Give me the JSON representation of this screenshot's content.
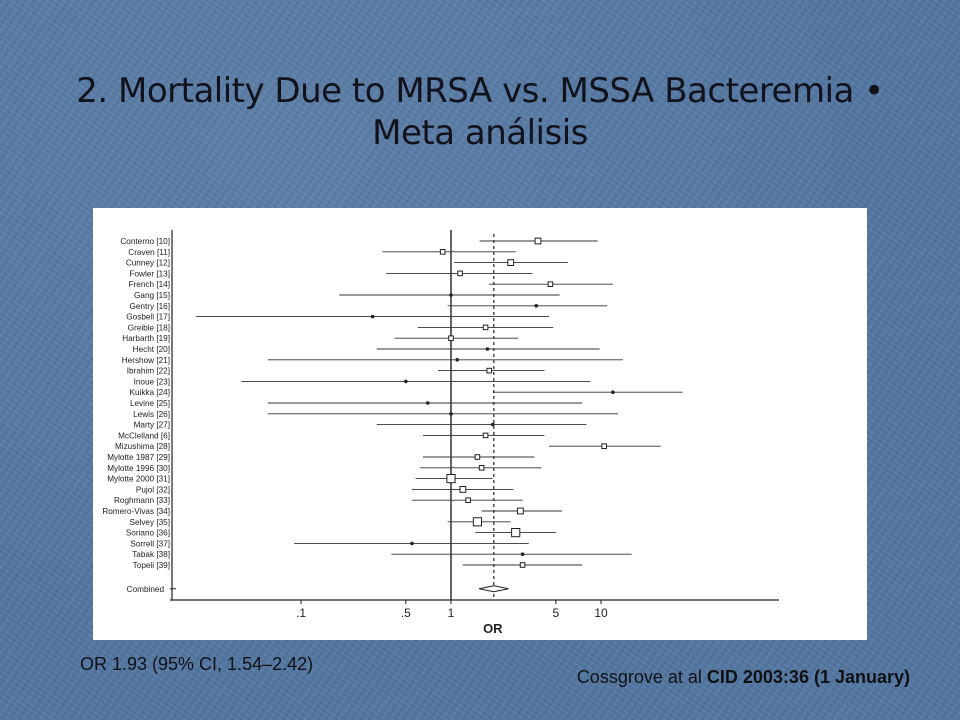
{
  "slide": {
    "title_line1": "2. Mortality Due to MRSA vs. MSSA Bacteremia •",
    "title_line2": "Meta análisis",
    "summary": "OR 1.93 (95% CI, 1.54–2.42)",
    "citation_prefix": "Cossgrove at al",
    "citation_bold": "CID 2003:36 (1 January)"
  },
  "chart_data": {
    "type": "forest",
    "title": "",
    "xlabel": "OR",
    "ylabel": "",
    "x_scale": "log",
    "xlim": [
      0.03,
      40
    ],
    "x_ticks": [
      0.1,
      0.5,
      1,
      5,
      10
    ],
    "x_tick_labels": [
      ".1",
      ".5",
      "1",
      "5",
      "10"
    ],
    "reference_line": 1,
    "pooled_line": 1.93,
    "studies": [
      {
        "name": "Conterno [10]",
        "or": 3.8,
        "lo": 1.55,
        "hi": 9.5,
        "box": "medium"
      },
      {
        "name": "Craven [11]",
        "or": 0.88,
        "lo": 0.35,
        "hi": 2.7,
        "box": "small"
      },
      {
        "name": "Cunney [12]",
        "or": 2.5,
        "lo": 1.05,
        "hi": 6.0,
        "box": "medium"
      },
      {
        "name": "Fowler [13]",
        "or": 1.15,
        "lo": 0.37,
        "hi": 3.5,
        "box": "small"
      },
      {
        "name": "French [14]",
        "or": 4.6,
        "lo": 1.8,
        "hi": 12,
        "box": "small"
      },
      {
        "name": "Gang [15]",
        "or": 1.0,
        "lo": 0.18,
        "hi": 5.3,
        "box": "dot"
      },
      {
        "name": "Gentry [16]",
        "or": 3.7,
        "lo": 0.95,
        "hi": 11,
        "box": "dot"
      },
      {
        "name": "Gosbell [17]",
        "or": 0.3,
        "lo": 0.02,
        "hi": 4.5,
        "box": "dot"
      },
      {
        "name": "Greible [18]",
        "or": 1.7,
        "lo": 0.6,
        "hi": 4.8,
        "box": "small"
      },
      {
        "name": "Harbarth [19]",
        "or": 1.0,
        "lo": 0.42,
        "hi": 2.8,
        "box": "small"
      },
      {
        "name": "Hecht [20]",
        "or": 1.75,
        "lo": 0.32,
        "hi": 9.8,
        "box": "dot"
      },
      {
        "name": "Hershow [21]",
        "or": 1.1,
        "lo": 0.06,
        "hi": 14,
        "box": "dot"
      },
      {
        "name": "Ibrahim [22]",
        "or": 1.8,
        "lo": 0.82,
        "hi": 4.2,
        "box": "small"
      },
      {
        "name": "Inoue [23]",
        "or": 0.5,
        "lo": 0.04,
        "hi": 8.5,
        "box": "dot"
      },
      {
        "name": "Kuikka [24]",
        "or": 12,
        "lo": 1.9,
        "hi": 35,
        "box": "dot"
      },
      {
        "name": "Levine [25]",
        "or": 0.7,
        "lo": 0.06,
        "hi": 7.5,
        "box": "dot"
      },
      {
        "name": "Lewis [26]",
        "or": 1.0,
        "lo": 0.06,
        "hi": 13,
        "box": "dot"
      },
      {
        "name": "Marty [27]",
        "or": 1.9,
        "lo": 0.32,
        "hi": 8.0,
        "box": "dot"
      },
      {
        "name": "McClelland [6]",
        "or": 1.7,
        "lo": 0.65,
        "hi": 4.2,
        "box": "small"
      },
      {
        "name": "Mizushima [28]",
        "or": 10.5,
        "lo": 4.5,
        "hi": 25,
        "box": "small"
      },
      {
        "name": "Mylotte 1987 [29]",
        "or": 1.5,
        "lo": 0.65,
        "hi": 3.6,
        "box": "small"
      },
      {
        "name": "Mylotte 1996 [30]",
        "or": 1.6,
        "lo": 0.62,
        "hi": 4.0,
        "box": "small"
      },
      {
        "name": "Mylotte 2000 [31]",
        "or": 1.0,
        "lo": 0.58,
        "hi": 1.9,
        "box": "large"
      },
      {
        "name": "Pujol [32]",
        "or": 1.2,
        "lo": 0.55,
        "hi": 2.6,
        "box": "medium"
      },
      {
        "name": "Roghmann [33]",
        "or": 1.3,
        "lo": 0.55,
        "hi": 3.0,
        "box": "small"
      },
      {
        "name": "Romero-Vivas [34]",
        "or": 2.9,
        "lo": 1.6,
        "hi": 5.5,
        "box": "medium"
      },
      {
        "name": "Selvey [35]",
        "or": 1.5,
        "lo": 0.95,
        "hi": 2.5,
        "box": "large"
      },
      {
        "name": "Soriano [36]",
        "or": 2.7,
        "lo": 1.45,
        "hi": 5.0,
        "box": "large"
      },
      {
        "name": "Sorrell [37]",
        "or": 0.55,
        "lo": 0.09,
        "hi": 3.3,
        "box": "dot"
      },
      {
        "name": "Tabak [38]",
        "or": 3.0,
        "lo": 0.4,
        "hi": 16,
        "box": "dot"
      },
      {
        "name": "Topeli [39]",
        "or": 3.0,
        "lo": 1.2,
        "hi": 7.5,
        "box": "small"
      }
    ],
    "combined": {
      "name": "Combined",
      "or": 1.93,
      "lo": 1.54,
      "hi": 2.42
    }
  }
}
